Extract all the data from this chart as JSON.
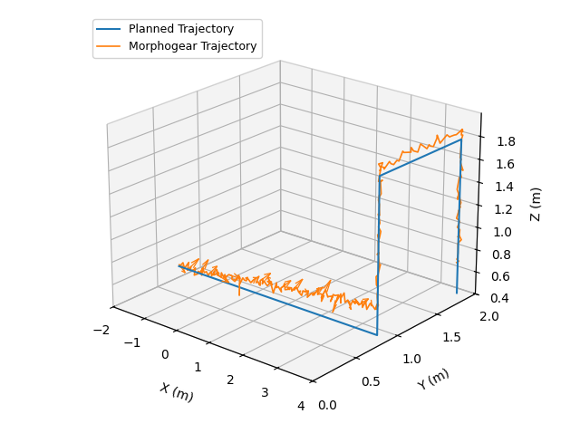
{
  "planned_label": "Planned Trajectory",
  "morpho_label": "Morphogear Trajectory",
  "planned_color": "#1f77b4",
  "morpho_color": "#ff7f0e",
  "xlim": [
    -2,
    4
  ],
  "ylim": [
    0.0,
    2.0
  ],
  "zlim": [
    0.4,
    2.0
  ],
  "xlabel": "X (m)",
  "ylabel": "Y (m)",
  "zlabel": "Z (m)",
  "figsize": [
    6.4,
    4.78
  ],
  "dpi": 100,
  "elev": 22,
  "azim": -50,
  "xticks": [
    -2,
    -1,
    0,
    1,
    2,
    3,
    4
  ],
  "yticks": [
    0.0,
    0.5,
    1.0,
    1.5,
    2.0
  ],
  "zticks": [
    0.4,
    0.6,
    0.8,
    1.0,
    1.2,
    1.4,
    1.6,
    1.8
  ]
}
